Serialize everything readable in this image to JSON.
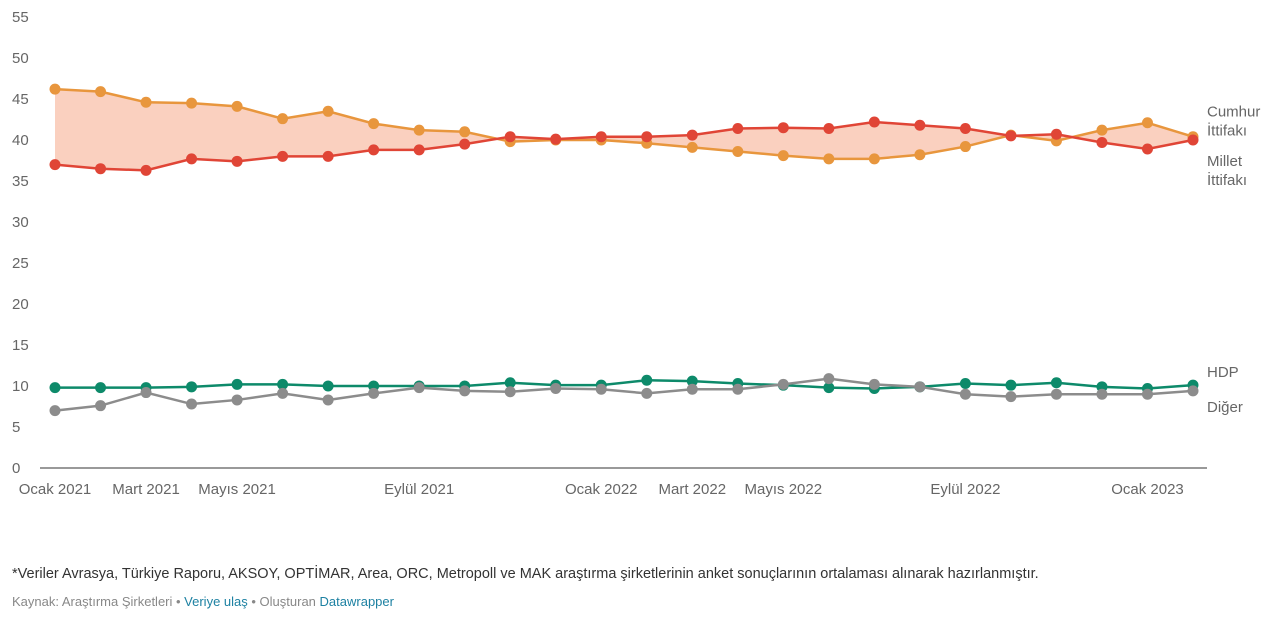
{
  "chart_data": {
    "type": "line",
    "categories": [
      "Ocak 2021",
      null,
      "Mart 2021",
      null,
      "Mayıs 2021",
      null,
      null,
      null,
      "Eylül 2021",
      null,
      null,
      null,
      "Ocak 2022",
      null,
      "Mart 2022",
      null,
      "Mayıs 2022",
      null,
      null,
      null,
      "Eylül 2022",
      null,
      null,
      null,
      "Ocak 2023",
      null
    ],
    "series": [
      {
        "name": "Cumhur İttifakı",
        "color": "#e8963d",
        "values": [
          46.2,
          45.9,
          44.6,
          44.5,
          44.1,
          42.6,
          43.5,
          42.0,
          41.2,
          41.0,
          39.8,
          40.0,
          40.0,
          39.6,
          39.1,
          38.6,
          38.1,
          37.7,
          37.7,
          38.2,
          39.2,
          40.6,
          39.9,
          41.2,
          42.1,
          40.4
        ]
      },
      {
        "name": "Millet İttifakı",
        "color": "#e04536",
        "values": [
          37.0,
          36.5,
          36.3,
          37.7,
          37.4,
          38.0,
          38.0,
          38.8,
          38.8,
          39.5,
          40.4,
          40.1,
          40.4,
          40.4,
          40.6,
          41.4,
          41.5,
          41.4,
          42.2,
          41.8,
          41.4,
          40.5,
          40.7,
          39.7,
          38.9,
          40.0
        ]
      },
      {
        "name": "HDP",
        "color": "#0d8a6a",
        "values": [
          9.8,
          9.8,
          9.8,
          9.9,
          10.2,
          10.2,
          10.0,
          10.0,
          10.0,
          10.0,
          10.4,
          10.1,
          10.1,
          10.7,
          10.6,
          10.3,
          10.1,
          9.8,
          9.7,
          9.9,
          10.3,
          10.1,
          10.4,
          9.9,
          9.7,
          10.1
        ]
      },
      {
        "name": "Diğer",
        "color": "#8c8c8c",
        "values": [
          7.0,
          7.6,
          9.2,
          7.8,
          8.3,
          9.1,
          8.3,
          9.1,
          9.8,
          9.4,
          9.3,
          9.7,
          9.6,
          9.1,
          9.6,
          9.6,
          10.2,
          10.9,
          10.2,
          9.9,
          9.0,
          8.7,
          9.0,
          9.0,
          9.0,
          9.4
        ]
      }
    ],
    "ylim": [
      0,
      55
    ],
    "yticks": [
      0,
      5,
      10,
      15,
      20,
      25,
      30,
      35,
      40,
      45,
      50,
      55
    ],
    "grid": false,
    "area_between": {
      "series": [
        0,
        1
      ],
      "color": "#f9c8b4"
    },
    "note": "*Veriler Avrasya, Türkiye Raporu, AKSOY, OPTİMAR, Area, ORC, Metropoll ve MAK araştırma şirketlerinin anket sonuçlarının ortalaması alınarak hazırlanmıştır.",
    "source": "Kaynak: Araştırma Şirketleri",
    "data_link": "Veriye ulaş",
    "credit": "Oluşturan",
    "credit_link": "Datawrapper"
  }
}
